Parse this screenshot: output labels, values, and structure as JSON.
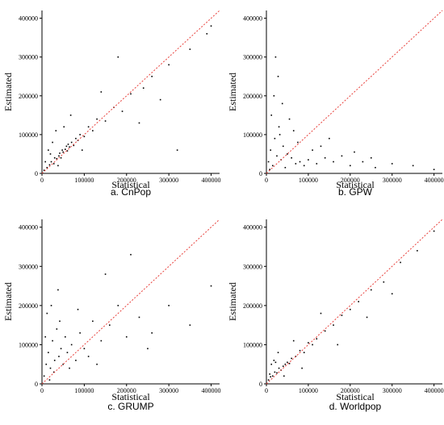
{
  "chart_data": [
    {
      "type": "scatter",
      "caption": "a. CnPop",
      "xlabel": "Statistical",
      "ylabel": "Estimated",
      "xlim": [
        0,
        420000
      ],
      "ylim": [
        0,
        420000
      ],
      "xticks": [
        0,
        100000,
        200000,
        300000,
        400000
      ],
      "yticks": [
        0,
        100000,
        200000,
        300000,
        400000
      ],
      "grid": false,
      "reference_line": "y = x",
      "point_color": "#000000",
      "line_color": "#e8413c",
      "series": [
        {
          "x": [
            5000,
            12000,
            18000,
            22000,
            28000,
            30000,
            35000,
            40000,
            42000,
            45000,
            48000,
            50000,
            55000,
            58000,
            60000,
            62000,
            65000,
            70000,
            75000,
            80000,
            85000,
            90000,
            100000,
            110000,
            120000,
            130000,
            150000,
            170000,
            190000,
            210000,
            240000,
            260000,
            300000,
            350000,
            390000,
            15000,
            25000,
            33000,
            38000,
            52000,
            68000,
            95000,
            140000,
            180000,
            230000,
            280000,
            320000,
            400000,
            8000,
            20000
          ],
          "y": [
            8000,
            15000,
            22000,
            30000,
            25000,
            40000,
            38000,
            45000,
            52000,
            40000,
            60000,
            55000,
            62000,
            70000,
            58000,
            75000,
            68000,
            80000,
            72000,
            90000,
            85000,
            100000,
            95000,
            120000,
            110000,
            140000,
            135000,
            170000,
            160000,
            205000,
            220000,
            250000,
            280000,
            320000,
            360000,
            60000,
            80000,
            110000,
            20000,
            120000,
            150000,
            60000,
            210000,
            300000,
            130000,
            190000,
            60000,
            380000,
            30000,
            50000
          ]
        }
      ]
    },
    {
      "type": "scatter",
      "caption": "b. GPW",
      "xlabel": "Statistical",
      "ylabel": "Estimated",
      "xlim": [
        0,
        420000
      ],
      "ylim": [
        0,
        420000
      ],
      "xticks": [
        0,
        100000,
        200000,
        300000,
        400000
      ],
      "yticks": [
        0,
        100000,
        200000,
        300000,
        400000
      ],
      "grid": false,
      "reference_line": "y = x",
      "point_color": "#000000",
      "line_color": "#e8413c",
      "series": [
        {
          "x": [
            5000,
            10000,
            15000,
            20000,
            25000,
            30000,
            35000,
            40000,
            45000,
            50000,
            60000,
            70000,
            80000,
            90000,
            100000,
            120000,
            140000,
            160000,
            180000,
            200000,
            230000,
            260000,
            300000,
            350000,
            400000,
            12000,
            18000,
            28000,
            32000,
            55000,
            75000,
            110000,
            150000,
            250000,
            8000,
            22000,
            38000,
            65000,
            130000,
            210000
          ],
          "y": [
            30000,
            60000,
            20000,
            90000,
            45000,
            120000,
            35000,
            70000,
            15000,
            50000,
            40000,
            25000,
            30000,
            20000,
            35000,
            25000,
            40000,
            30000,
            45000,
            20000,
            30000,
            15000,
            25000,
            20000,
            10000,
            150000,
            200000,
            250000,
            100000,
            140000,
            80000,
            60000,
            90000,
            40000,
            10000,
            300000,
            180000,
            110000,
            70000,
            55000
          ]
        }
      ]
    },
    {
      "type": "scatter",
      "caption": "c. GRUMP",
      "xlabel": "Statistical",
      "ylabel": "Estimated",
      "xlim": [
        0,
        420000
      ],
      "ylim": [
        0,
        420000
      ],
      "xticks": [
        0,
        100000,
        200000,
        300000,
        400000
      ],
      "yticks": [
        0,
        100000,
        200000,
        300000,
        400000
      ],
      "grid": false,
      "reference_line": "y = x",
      "point_color": "#000000",
      "line_color": "#e8413c",
      "series": [
        {
          "x": [
            5000,
            10000,
            15000,
            20000,
            25000,
            30000,
            35000,
            40000,
            45000,
            50000,
            55000,
            60000,
            70000,
            80000,
            90000,
            100000,
            120000,
            140000,
            160000,
            180000,
            200000,
            230000,
            260000,
            300000,
            350000,
            400000,
            12000,
            18000,
            28000,
            42000,
            65000,
            85000,
            110000,
            150000,
            250000,
            8000,
            22000,
            38000,
            130000,
            210000
          ],
          "y": [
            20000,
            50000,
            80000,
            40000,
            110000,
            60000,
            140000,
            70000,
            90000,
            50000,
            120000,
            80000,
            100000,
            60000,
            130000,
            90000,
            160000,
            110000,
            150000,
            200000,
            120000,
            170000,
            130000,
            200000,
            150000,
            250000,
            180000,
            10000,
            30000,
            160000,
            40000,
            190000,
            70000,
            280000,
            90000,
            120000,
            200000,
            240000,
            50000,
            330000
          ]
        }
      ]
    },
    {
      "type": "scatter",
      "caption": "d. Worldpop",
      "xlabel": "Statistical",
      "ylabel": "Estimated",
      "xlim": [
        0,
        420000
      ],
      "ylim": [
        0,
        420000
      ],
      "xticks": [
        0,
        100000,
        200000,
        300000,
        400000
      ],
      "yticks": [
        0,
        100000,
        200000,
        300000,
        400000
      ],
      "grid": false,
      "reference_line": "y = x",
      "point_color": "#000000",
      "line_color": "#e8413c",
      "series": [
        {
          "x": [
            5000,
            10000,
            15000,
            20000,
            25000,
            30000,
            35000,
            40000,
            45000,
            50000,
            55000,
            60000,
            70000,
            80000,
            90000,
            100000,
            110000,
            120000,
            140000,
            160000,
            180000,
            200000,
            220000,
            250000,
            280000,
            320000,
            360000,
            400000,
            12000,
            18000,
            28000,
            42000,
            65000,
            85000,
            130000,
            170000,
            240000,
            300000,
            8000,
            22000
          ],
          "y": [
            10000,
            18000,
            20000,
            30000,
            28000,
            40000,
            35000,
            45000,
            50000,
            55000,
            52000,
            65000,
            70000,
            85000,
            80000,
            105000,
            100000,
            115000,
            135000,
            150000,
            175000,
            190000,
            210000,
            240000,
            260000,
            310000,
            340000,
            390000,
            50000,
            60000,
            80000,
            20000,
            110000,
            40000,
            180000,
            100000,
            170000,
            230000,
            25000,
            55000
          ]
        }
      ]
    }
  ]
}
